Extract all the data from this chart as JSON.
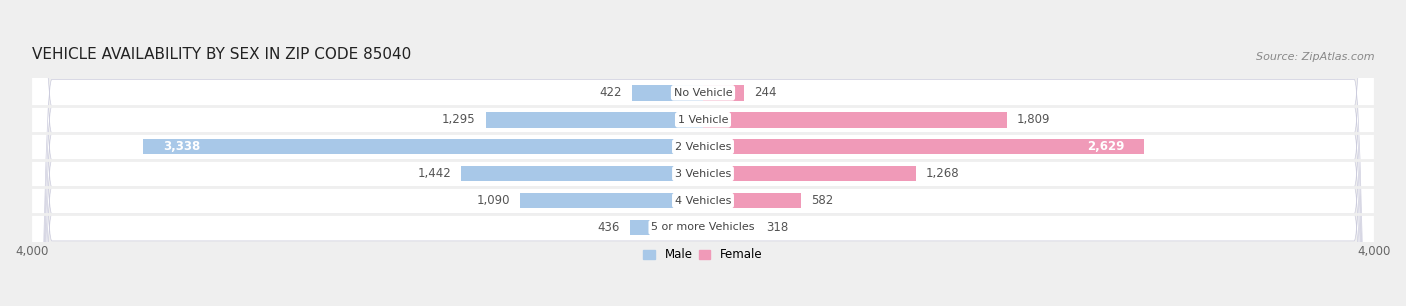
{
  "title": "VEHICLE AVAILABILITY BY SEX IN ZIP CODE 85040",
  "source": "Source: ZipAtlas.com",
  "categories": [
    "No Vehicle",
    "1 Vehicle",
    "2 Vehicles",
    "3 Vehicles",
    "4 Vehicles",
    "5 or more Vehicles"
  ],
  "male_values": [
    422,
    1295,
    3338,
    1442,
    1090,
    436
  ],
  "female_values": [
    244,
    1809,
    2629,
    1268,
    582,
    318
  ],
  "male_color": "#a8c8e8",
  "female_color": "#f09ab8",
  "male_label": "Male",
  "female_label": "Female",
  "xlim": [
    -4000,
    4000
  ],
  "xtick_labels": [
    "4,000",
    "4,000"
  ],
  "background_color": "#efefef",
  "row_bg_color": "#e8e8ee",
  "title_fontsize": 11,
  "source_fontsize": 8,
  "label_fontsize": 8.5,
  "bar_height": 0.58
}
